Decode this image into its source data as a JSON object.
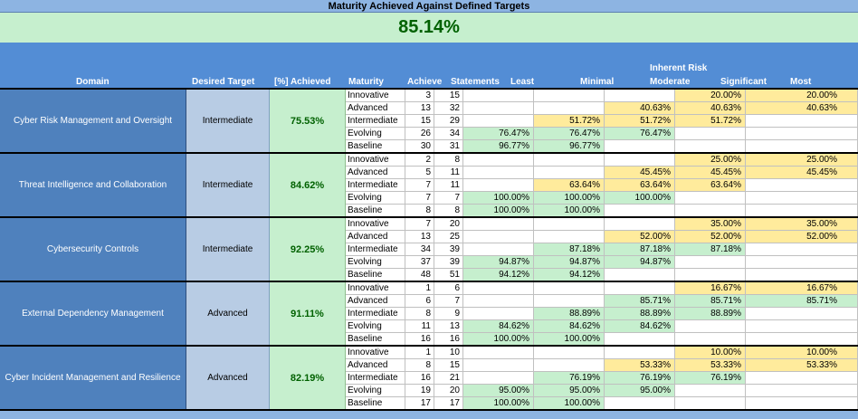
{
  "title": "Maturity Achieved Against Defined Targets",
  "overall": "85.14%",
  "headers": {
    "domain": "Domain",
    "desired_target": "Desired Target",
    "achieved": "[%] Achieved",
    "maturity": "Maturity",
    "achieve": "Achieve",
    "statements": "Statements",
    "inherent_risk": "Inherent Risk",
    "least": "Least",
    "minimal": "Minimal",
    "moderate": "Moderate",
    "significant": "Significant",
    "most": "Most"
  },
  "domains": [
    {
      "name": "Cyber Risk Management and Oversight",
      "target": "Intermediate",
      "achieved": "75.53%",
      "rows": [
        {
          "maturity": "Innovative",
          "achieve": "3",
          "statements": "15",
          "least": "",
          "minimal": "",
          "moderate": "",
          "significant": "20.00%",
          "most": "20.00%"
        },
        {
          "maturity": "Advanced",
          "achieve": "13",
          "statements": "32",
          "least": "",
          "minimal": "",
          "moderate": "40.63%",
          "significant": "40.63%",
          "most": "40.63%"
        },
        {
          "maturity": "Intermediate",
          "achieve": "15",
          "statements": "29",
          "least": "",
          "minimal": "51.72%",
          "moderate": "51.72%",
          "significant": "51.72%",
          "most": ""
        },
        {
          "maturity": "Evolving",
          "achieve": "26",
          "statements": "34",
          "least": "76.47%",
          "minimal": "76.47%",
          "moderate": "76.47%",
          "significant": "",
          "most": ""
        },
        {
          "maturity": "Baseline",
          "achieve": "30",
          "statements": "31",
          "least": "96.77%",
          "minimal": "96.77%",
          "moderate": "",
          "significant": "",
          "most": ""
        }
      ]
    },
    {
      "name": "Threat Intelligence and Collaboration",
      "target": "Intermediate",
      "achieved": "84.62%",
      "rows": [
        {
          "maturity": "Innovative",
          "achieve": "2",
          "statements": "8",
          "least": "",
          "minimal": "",
          "moderate": "",
          "significant": "25.00%",
          "most": "25.00%"
        },
        {
          "maturity": "Advanced",
          "achieve": "5",
          "statements": "11",
          "least": "",
          "minimal": "",
          "moderate": "45.45%",
          "significant": "45.45%",
          "most": "45.45%"
        },
        {
          "maturity": "Intermediate",
          "achieve": "7",
          "statements": "11",
          "least": "",
          "minimal": "63.64%",
          "moderate": "63.64%",
          "significant": "63.64%",
          "most": ""
        },
        {
          "maturity": "Evolving",
          "achieve": "7",
          "statements": "7",
          "least": "100.00%",
          "minimal": "100.00%",
          "moderate": "100.00%",
          "significant": "",
          "most": ""
        },
        {
          "maturity": "Baseline",
          "achieve": "8",
          "statements": "8",
          "least": "100.00%",
          "minimal": "100.00%",
          "moderate": "",
          "significant": "",
          "most": ""
        }
      ]
    },
    {
      "name": "Cybersecurity Controls",
      "target": "Intermediate",
      "achieved": "92.25%",
      "rows": [
        {
          "maturity": "Innovative",
          "achieve": "7",
          "statements": "20",
          "least": "",
          "minimal": "",
          "moderate": "",
          "significant": "35.00%",
          "most": "35.00%"
        },
        {
          "maturity": "Advanced",
          "achieve": "13",
          "statements": "25",
          "least": "",
          "minimal": "",
          "moderate": "52.00%",
          "significant": "52.00%",
          "most": "52.00%"
        },
        {
          "maturity": "Intermediate",
          "achieve": "34",
          "statements": "39",
          "least": "",
          "minimal": "87.18%",
          "moderate": "87.18%",
          "significant": "87.18%",
          "most": ""
        },
        {
          "maturity": "Evolving",
          "achieve": "37",
          "statements": "39",
          "least": "94.87%",
          "minimal": "94.87%",
          "moderate": "94.87%",
          "significant": "",
          "most": ""
        },
        {
          "maturity": "Baseline",
          "achieve": "48",
          "statements": "51",
          "least": "94.12%",
          "minimal": "94.12%",
          "moderate": "",
          "significant": "",
          "most": ""
        }
      ]
    },
    {
      "name": "External Dependency Management",
      "target": "Advanced",
      "achieved": "91.11%",
      "rows": [
        {
          "maturity": "Innovative",
          "achieve": "1",
          "statements": "6",
          "least": "",
          "minimal": "",
          "moderate": "",
          "significant": "16.67%",
          "most": "16.67%"
        },
        {
          "maturity": "Advanced",
          "achieve": "6",
          "statements": "7",
          "least": "",
          "minimal": "",
          "moderate": "85.71%",
          "significant": "85.71%",
          "most": "85.71%"
        },
        {
          "maturity": "Intermediate",
          "achieve": "8",
          "statements": "9",
          "least": "",
          "minimal": "88.89%",
          "moderate": "88.89%",
          "significant": "88.89%",
          "most": ""
        },
        {
          "maturity": "Evolving",
          "achieve": "11",
          "statements": "13",
          "least": "84.62%",
          "minimal": "84.62%",
          "moderate": "84.62%",
          "significant": "",
          "most": ""
        },
        {
          "maturity": "Baseline",
          "achieve": "16",
          "statements": "16",
          "least": "100.00%",
          "minimal": "100.00%",
          "moderate": "",
          "significant": "",
          "most": ""
        }
      ]
    },
    {
      "name": "Cyber Incident Management and Resilience",
      "target": "Advanced",
      "achieved": "82.19%",
      "rows": [
        {
          "maturity": "Innovative",
          "achieve": "1",
          "statements": "10",
          "least": "",
          "minimal": "",
          "moderate": "",
          "significant": "10.00%",
          "most": "10.00%"
        },
        {
          "maturity": "Advanced",
          "achieve": "8",
          "statements": "15",
          "least": "",
          "minimal": "",
          "moderate": "53.33%",
          "significant": "53.33%",
          "most": "53.33%"
        },
        {
          "maturity": "Intermediate",
          "achieve": "16",
          "statements": "21",
          "least": "",
          "minimal": "76.19%",
          "moderate": "76.19%",
          "significant": "76.19%",
          "most": ""
        },
        {
          "maturity": "Evolving",
          "achieve": "19",
          "statements": "20",
          "least": "95.00%",
          "minimal": "95.00%",
          "moderate": "95.00%",
          "significant": "",
          "most": ""
        },
        {
          "maturity": "Baseline",
          "achieve": "17",
          "statements": "17",
          "least": "100.00%",
          "minimal": "100.00%",
          "moderate": "",
          "significant": "",
          "most": ""
        }
      ]
    }
  ],
  "colors": {
    "header_blue": "#538dd5",
    "domain_blue": "#4f81bd",
    "target_blue": "#b8cce4",
    "good_green": "#c6efce",
    "warn_yellow": "#ffeb9c",
    "text_green": "#006100"
  }
}
